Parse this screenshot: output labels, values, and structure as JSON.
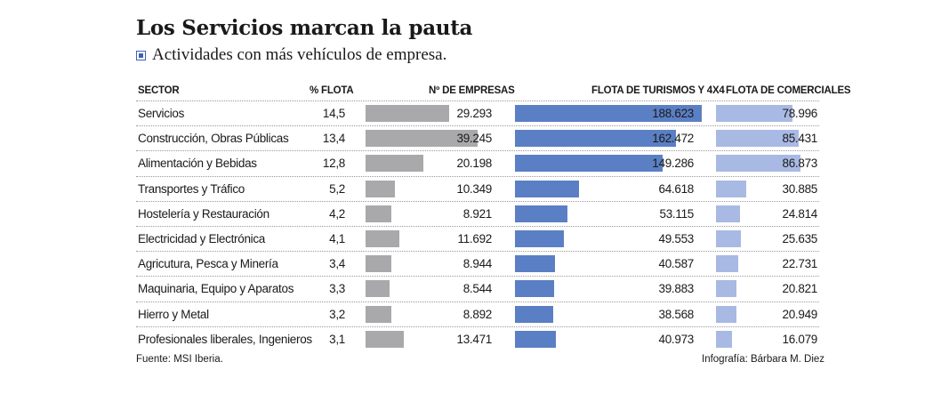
{
  "title": "Los Servicios marcan la pauta",
  "subtitle": "Actividades con más vehículos de empresa.",
  "source": "Fuente: MSI Iberia.",
  "credit": "Infografía: Bárbara M. Diez",
  "colors": {
    "empresas_bar": "#a9a9ab",
    "turismos_bar": "#5b7fc4",
    "comerciales_bar": "#a8b9e3",
    "legend_square": "#3d62b5"
  },
  "chart_data": {
    "type": "table",
    "columns": [
      "SECTOR",
      "% FLOTA",
      "Nº DE EMPRESAS",
      "FLOTA DE TURISMOS Y 4X4",
      "FLOTA DE COMERCIALES"
    ],
    "bar_max": {
      "empresas": 39245,
      "turismos": 188623,
      "comerciales": 86873
    },
    "rows": [
      {
        "sector": "Servicios",
        "pct": "14,5",
        "empresas": "29.293",
        "turismos": "188.623",
        "comerciales": "78.996"
      },
      {
        "sector": "Construcción, Obras Públicas",
        "pct": "13,4",
        "empresas": "39.245",
        "turismos": "162.472",
        "comerciales": "85.431"
      },
      {
        "sector": "Alimentación y Bebidas",
        "pct": "12,8",
        "empresas": "20.198",
        "turismos": "149.286",
        "comerciales": "86.873"
      },
      {
        "sector": "Transportes y Tráfico",
        "pct": "5,2",
        "empresas": "10.349",
        "turismos": "64.618",
        "comerciales": "30.885"
      },
      {
        "sector": "Hostelería y Restauración",
        "pct": "4,2",
        "empresas": "8.921",
        "turismos": "53.115",
        "comerciales": "24.814"
      },
      {
        "sector": "Electricidad y Electrónica",
        "pct": "4,1",
        "empresas": "11.692",
        "turismos": "49.553",
        "comerciales": "25.635"
      },
      {
        "sector": "Agricutura, Pesca y Minería",
        "pct": "3,4",
        "empresas": "8.944",
        "turismos": "40.587",
        "comerciales": "22.731"
      },
      {
        "sector": "Maquinaria, Equipo y Aparatos",
        "pct": "3,3",
        "empresas": "8.544",
        "turismos": "39.883",
        "comerciales": "20.821"
      },
      {
        "sector": "Hierro y Metal",
        "pct": "3,2",
        "empresas": "8.892",
        "turismos": "38.568",
        "comerciales": "20.949"
      },
      {
        "sector": "Profesionales liberales, Ingenieros",
        "pct": "3,1",
        "empresas": "13.471",
        "turismos": "40.973",
        "comerciales": "16.079"
      }
    ]
  }
}
